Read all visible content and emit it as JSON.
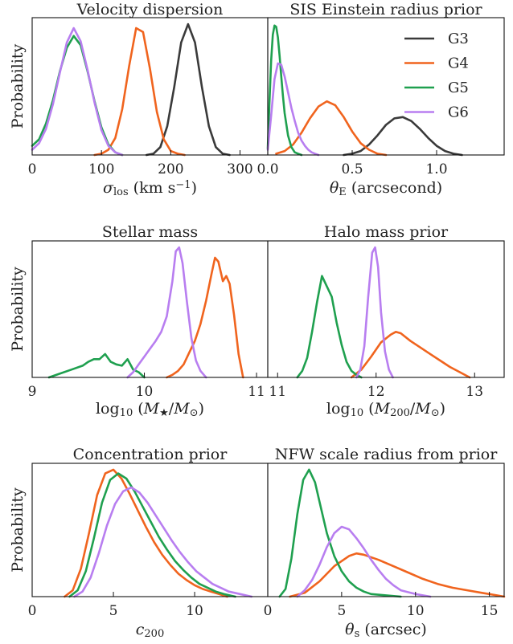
{
  "figure": {
    "ylabel": "Probability",
    "legend": {
      "placement": "top-right of SIS Einstein radius prior panel",
      "entries": [
        {
          "name": "G3",
          "color": "#3a3a3a"
        },
        {
          "name": "G4",
          "color": "#f0641e"
        },
        {
          "name": "G5",
          "color": "#1fa04f"
        },
        {
          "name": "G6",
          "color": "#b87ef0"
        }
      ]
    }
  },
  "chart_data": [
    {
      "type": "line",
      "title": "Velocity dispersion",
      "xlabel_main": "σ",
      "xlabel_sub": "los",
      "xlabel_unit": " (km s",
      "xlabel_sup": "−1",
      "xlabel_close": ")",
      "xlim": [
        0,
        340
      ],
      "ylim": [
        0,
        1.05
      ],
      "xticks": [
        0,
        100,
        200,
        300
      ],
      "xticklabels": [
        "0",
        "100",
        "200",
        "300"
      ],
      "series": [
        {
          "name": "G3",
          "color": "#3a3a3a",
          "x": [
            165,
            175,
            185,
            195,
            205,
            215,
            225,
            235,
            245,
            255,
            265,
            275,
            285
          ],
          "y": [
            0,
            0.01,
            0.06,
            0.22,
            0.52,
            0.86,
            1.0,
            0.86,
            0.52,
            0.22,
            0.06,
            0.01,
            0
          ]
        },
        {
          "name": "G4",
          "color": "#f0641e",
          "x": [
            90,
            100,
            110,
            120,
            130,
            140,
            150,
            160,
            170,
            180,
            190,
            200,
            210,
            220
          ],
          "y": [
            0,
            0.01,
            0.04,
            0.13,
            0.35,
            0.68,
            0.97,
            0.94,
            0.66,
            0.33,
            0.12,
            0.03,
            0.01,
            0
          ]
        },
        {
          "name": "G5",
          "color": "#1fa04f",
          "x": [
            0,
            10,
            20,
            30,
            40,
            50,
            60,
            70,
            80,
            90,
            100,
            110,
            120,
            130
          ],
          "y": [
            0.07,
            0.12,
            0.24,
            0.42,
            0.64,
            0.82,
            0.91,
            0.84,
            0.64,
            0.41,
            0.21,
            0.08,
            0.02,
            0
          ]
        },
        {
          "name": "G6",
          "color": "#b87ef0",
          "x": [
            0,
            10,
            20,
            30,
            40,
            50,
            60,
            70,
            80,
            90,
            100,
            110,
            120,
            130
          ],
          "y": [
            0.04,
            0.09,
            0.2,
            0.39,
            0.63,
            0.86,
            0.97,
            0.87,
            0.65,
            0.4,
            0.19,
            0.07,
            0.02,
            0
          ]
        }
      ]
    },
    {
      "type": "line",
      "title": "SIS Einstein radius prior",
      "xlabel_main": "θ",
      "xlabel_sub": "E",
      "xlabel_unit": " (arcsecond)",
      "xlabel_sup": "",
      "xlabel_close": "",
      "xlim": [
        0,
        1.4
      ],
      "ylim": [
        0,
        1.05
      ],
      "xticks": [
        0,
        0.5,
        1.0
      ],
      "xticklabels": [
        "0.0",
        "0.5",
        "1.0"
      ],
      "series": [
        {
          "name": "G3",
          "color": "#3a3a3a",
          "x": [
            0.45,
            0.5,
            0.55,
            0.6,
            0.65,
            0.7,
            0.75,
            0.8,
            0.85,
            0.9,
            0.95,
            1.0,
            1.05,
            1.1,
            1.15
          ],
          "y": [
            0,
            0.01,
            0.03,
            0.08,
            0.15,
            0.23,
            0.28,
            0.29,
            0.26,
            0.2,
            0.13,
            0.07,
            0.03,
            0.01,
            0
          ]
        },
        {
          "name": "G4",
          "color": "#f0641e",
          "x": [
            0.05,
            0.1,
            0.15,
            0.2,
            0.25,
            0.3,
            0.35,
            0.4,
            0.45,
            0.5,
            0.55,
            0.6,
            0.65,
            0.7
          ],
          "y": [
            0.01,
            0.03,
            0.08,
            0.17,
            0.28,
            0.37,
            0.41,
            0.38,
            0.29,
            0.18,
            0.09,
            0.04,
            0.01,
            0
          ]
        },
        {
          "name": "G5",
          "color": "#1fa04f",
          "x": [
            0,
            0.01,
            0.02,
            0.03,
            0.04,
            0.05,
            0.06,
            0.07,
            0.08,
            0.09,
            0.1,
            0.12,
            0.14,
            0.16,
            0.18,
            0.2
          ],
          "y": [
            0.05,
            0.4,
            0.72,
            0.92,
            0.99,
            0.98,
            0.9,
            0.76,
            0.6,
            0.45,
            0.32,
            0.15,
            0.06,
            0.02,
            0.01,
            0
          ]
        },
        {
          "name": "G6",
          "color": "#b87ef0",
          "x": [
            0,
            0.02,
            0.04,
            0.06,
            0.08,
            0.1,
            0.12,
            0.14,
            0.16,
            0.18,
            0.2,
            0.22,
            0.24,
            0.26,
            0.28,
            0.3
          ],
          "y": [
            0.04,
            0.3,
            0.58,
            0.7,
            0.69,
            0.6,
            0.48,
            0.36,
            0.26,
            0.17,
            0.11,
            0.07,
            0.04,
            0.02,
            0.01,
            0
          ]
        }
      ]
    },
    {
      "type": "line",
      "title": "Stellar mass",
      "xlabel_main": "log",
      "xlabel_sub": "10",
      "xlabel_unit": " (M",
      "xlabel_sub2": "★",
      "xlabel_mid": "/M",
      "xlabel_sub3": "⊙",
      "xlabel_close": ")",
      "xlim": [
        9,
        11.1
      ],
      "ylim": [
        0,
        1.05
      ],
      "xticks": [
        9,
        10,
        11
      ],
      "xticklabels": [
        "9",
        "10",
        "11"
      ],
      "series": [
        {
          "name": "G4",
          "color": "#f0641e",
          "x": [
            10.2,
            10.25,
            10.3,
            10.35,
            10.4,
            10.45,
            10.5,
            10.55,
            10.6,
            10.63,
            10.66,
            10.7,
            10.73,
            10.76,
            10.8,
            10.84,
            10.88
          ],
          "y": [
            0,
            0.02,
            0.05,
            0.1,
            0.19,
            0.28,
            0.41,
            0.59,
            0.8,
            0.92,
            0.89,
            0.74,
            0.78,
            0.72,
            0.48,
            0.18,
            0
          ]
        },
        {
          "name": "G5",
          "color": "#1fa04f",
          "x": [
            9.15,
            9.25,
            9.35,
            9.45,
            9.5,
            9.55,
            9.6,
            9.65,
            9.7,
            9.75,
            9.8,
            9.85,
            9.9,
            9.95,
            10.0
          ],
          "y": [
            0,
            0.03,
            0.06,
            0.09,
            0.12,
            0.14,
            0.14,
            0.18,
            0.12,
            0.1,
            0.09,
            0.14,
            0.06,
            0.04,
            0
          ]
        },
        {
          "name": "G6",
          "color": "#b87ef0",
          "x": [
            9.85,
            9.9,
            9.95,
            10.0,
            10.05,
            10.1,
            10.15,
            10.2,
            10.25,
            10.28,
            10.31,
            10.34,
            10.38,
            10.42,
            10.46,
            10.5,
            10.55
          ],
          "y": [
            0,
            0.04,
            0.1,
            0.16,
            0.22,
            0.28,
            0.35,
            0.47,
            0.74,
            0.97,
            1.0,
            0.88,
            0.58,
            0.3,
            0.13,
            0.05,
            0
          ]
        }
      ]
    },
    {
      "type": "line",
      "title": "Halo mass prior",
      "xlabel_main": "log",
      "xlabel_sub": "10",
      "xlabel_unit": " (M",
      "xlabel_sub2": "200",
      "xlabel_mid": "/M",
      "xlabel_sub3": "⊙",
      "xlabel_close": ")",
      "xlim": [
        10.9,
        13.3
      ],
      "ylim": [
        0,
        1.05
      ],
      "xticks": [
        11,
        12,
        13
      ],
      "xticklabels": [
        "11",
        "12",
        "13"
      ],
      "series": [
        {
          "name": "G4",
          "color": "#f0641e",
          "x": [
            11.75,
            11.85,
            11.95,
            12.05,
            12.15,
            12.2,
            12.25,
            12.35,
            12.45,
            12.55,
            12.65,
            12.75,
            12.85,
            12.95
          ],
          "y": [
            0,
            0.06,
            0.16,
            0.27,
            0.33,
            0.35,
            0.34,
            0.28,
            0.23,
            0.18,
            0.13,
            0.08,
            0.04,
            0
          ]
        },
        {
          "name": "G5",
          "color": "#1fa04f",
          "x": [
            11.2,
            11.25,
            11.3,
            11.35,
            11.4,
            11.45,
            11.5,
            11.55,
            11.6,
            11.65,
            11.7,
            11.75,
            11.8,
            11.85
          ],
          "y": [
            0,
            0.05,
            0.15,
            0.35,
            0.58,
            0.78,
            0.7,
            0.62,
            0.42,
            0.25,
            0.12,
            0.05,
            0.02,
            0
          ]
        },
        {
          "name": "G6",
          "color": "#b87ef0",
          "x": [
            11.8,
            11.84,
            11.88,
            11.92,
            11.96,
            11.99,
            12.02,
            12.05,
            12.09,
            12.13,
            12.17
          ],
          "y": [
            0,
            0.06,
            0.24,
            0.62,
            0.96,
            1.0,
            0.85,
            0.5,
            0.2,
            0.06,
            0
          ]
        }
      ]
    },
    {
      "type": "line",
      "title": "Concentration prior",
      "xlabel_main": "c",
      "xlabel_sub": "200",
      "xlabel_unit": "",
      "xlabel_sup": "",
      "xlabel_close": "",
      "xlim": [
        0,
        14.5
      ],
      "ylim": [
        0,
        1.05
      ],
      "xticks": [
        0,
        5,
        10
      ],
      "xticklabels": [
        "0",
        "5",
        "10"
      ],
      "series": [
        {
          "name": "G4",
          "color": "#f0641e",
          "x": [
            2,
            2.5,
            3,
            3.5,
            4,
            4.5,
            5,
            5.5,
            6,
            6.5,
            7,
            7.5,
            8,
            8.5,
            9,
            9.5,
            10,
            10.5,
            11,
            11.5,
            12
          ],
          "y": [
            0,
            0.05,
            0.22,
            0.5,
            0.8,
            0.97,
            1.0,
            0.93,
            0.81,
            0.68,
            0.55,
            0.43,
            0.33,
            0.25,
            0.18,
            0.13,
            0.09,
            0.06,
            0.04,
            0.02,
            0
          ]
        },
        {
          "name": "G5",
          "color": "#1fa04f",
          "x": [
            2.3,
            2.8,
            3.3,
            3.8,
            4.3,
            4.8,
            5.3,
            5.8,
            6.3,
            6.8,
            7.3,
            7.8,
            8.3,
            8.8,
            9.3,
            9.8,
            10.3,
            10.8,
            11.3,
            11.8,
            12.5
          ],
          "y": [
            0,
            0.05,
            0.2,
            0.46,
            0.74,
            0.92,
            0.97,
            0.93,
            0.83,
            0.71,
            0.59,
            0.47,
            0.37,
            0.28,
            0.21,
            0.15,
            0.1,
            0.07,
            0.04,
            0.02,
            0
          ]
        },
        {
          "name": "G6",
          "color": "#b87ef0",
          "x": [
            2.6,
            3.1,
            3.6,
            4.1,
            4.6,
            5.1,
            5.6,
            6.1,
            6.6,
            7.1,
            7.6,
            8.1,
            8.6,
            9.1,
            9.6,
            10.1,
            10.6,
            11.1,
            11.6,
            12.1,
            12.8,
            13.5
          ],
          "y": [
            0,
            0.04,
            0.15,
            0.34,
            0.56,
            0.73,
            0.83,
            0.86,
            0.82,
            0.74,
            0.64,
            0.54,
            0.44,
            0.35,
            0.27,
            0.2,
            0.15,
            0.1,
            0.07,
            0.04,
            0.02,
            0
          ]
        }
      ]
    },
    {
      "type": "line",
      "title": "NFW scale radius from prior",
      "xlabel_main": "θ",
      "xlabel_sub": "s",
      "xlabel_unit": " (arcsec)",
      "xlabel_sup": "",
      "xlabel_close": "",
      "xlim": [
        0,
        16
      ],
      "ylim": [
        0,
        1.05
      ],
      "xticks": [
        0,
        5,
        10,
        15
      ],
      "xticklabels": [
        "0",
        "5",
        "10",
        "15"
      ],
      "series": [
        {
          "name": "G4",
          "color": "#f0641e",
          "x": [
            1.5,
            2.5,
            3.5,
            4.5,
            5.5,
            6,
            6.5,
            7.5,
            8.5,
            9.5,
            10.5,
            11.5,
            12.5,
            13.5,
            14.5,
            15.5,
            16
          ],
          "y": [
            0,
            0.03,
            0.12,
            0.24,
            0.32,
            0.34,
            0.33,
            0.29,
            0.24,
            0.19,
            0.14,
            0.1,
            0.07,
            0.05,
            0.03,
            0.01,
            0
          ]
        },
        {
          "name": "G5",
          "color": "#1fa04f",
          "x": [
            0.8,
            1.2,
            1.6,
            2,
            2.4,
            2.8,
            3.2,
            3.6,
            4,
            4.5,
            5,
            5.5,
            6,
            6.5,
            7,
            8,
            9
          ],
          "y": [
            0,
            0.06,
            0.3,
            0.65,
            0.92,
            1.0,
            0.9,
            0.7,
            0.5,
            0.32,
            0.2,
            0.12,
            0.07,
            0.04,
            0.02,
            0.01,
            0
          ]
        },
        {
          "name": "G6",
          "color": "#b87ef0",
          "x": [
            2,
            2.5,
            3,
            3.5,
            4,
            4.5,
            5,
            5.5,
            6,
            6.5,
            7,
            7.5,
            8,
            8.5,
            9,
            10,
            11
          ],
          "y": [
            0,
            0.05,
            0.13,
            0.25,
            0.39,
            0.5,
            0.55,
            0.53,
            0.46,
            0.38,
            0.29,
            0.21,
            0.14,
            0.09,
            0.05,
            0.02,
            0
          ]
        }
      ]
    }
  ]
}
